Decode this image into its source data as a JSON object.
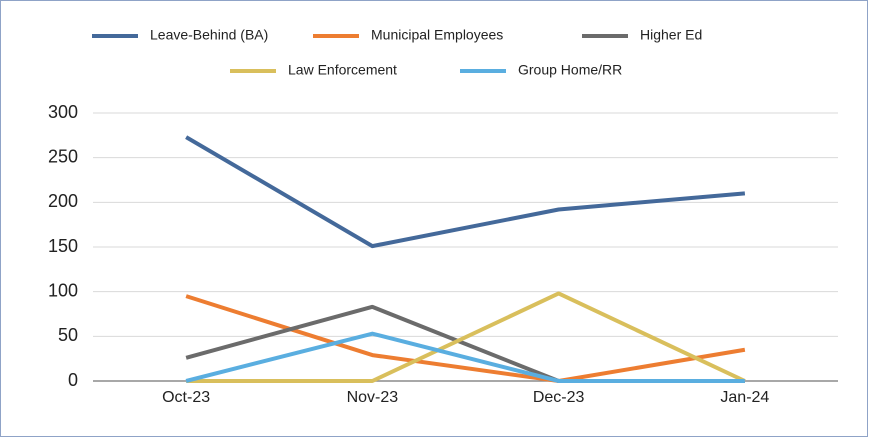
{
  "chart_data": {
    "type": "line",
    "categories": [
      "Oct-23",
      "Nov-23",
      "Dec-23",
      "Jan-24"
    ],
    "series": [
      {
        "name": "Leave-Behind (BA)",
        "color": "#44699a",
        "values": [
          273,
          151,
          192,
          210
        ]
      },
      {
        "name": "Municipal Employees",
        "color": "#ed7d31",
        "values": [
          95,
          29,
          0,
          35
        ]
      },
      {
        "name": "Higher Ed",
        "color": "#6b6b6b",
        "values": [
          26,
          83,
          0,
          0
        ]
      },
      {
        "name": "Law Enforcement",
        "color": "#d9bf5c",
        "values": [
          0,
          0,
          98,
          0
        ]
      },
      {
        "name": "Group Home/RR",
        "color": "#5aaee0",
        "values": [
          0,
          53,
          0,
          0
        ]
      }
    ],
    "ylim": [
      0,
      300
    ],
    "yticks": [
      0,
      50,
      100,
      150,
      200,
      250,
      300
    ],
    "grid": true,
    "legend": "top"
  }
}
